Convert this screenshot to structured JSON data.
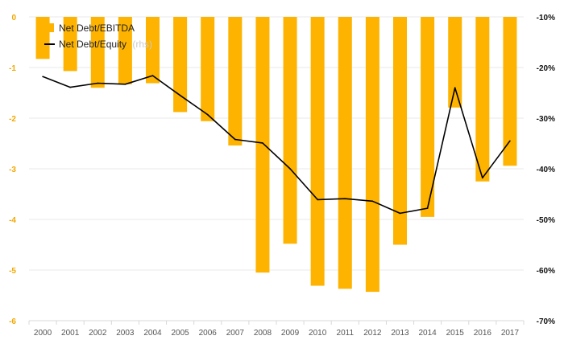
{
  "chart_data": {
    "type": "bar",
    "categories": [
      "2000",
      "2001",
      "2002",
      "2003",
      "2004",
      "2005",
      "2006",
      "2007",
      "2008",
      "2009",
      "2010",
      "2011",
      "2012",
      "2013",
      "2014",
      "2015",
      "2016",
      "2017"
    ],
    "series": [
      {
        "name": "Net Debt/EBITDA",
        "kind": "bar",
        "axis": "left",
        "color": "#fdb300",
        "values": [
          -0.83,
          -1.07,
          -1.4,
          -1.33,
          -1.31,
          -1.88,
          -2.06,
          -2.54,
          -5.05,
          -4.48,
          -5.31,
          -5.37,
          -5.43,
          -4.5,
          -3.95,
          -1.79,
          -3.25,
          -2.94
        ]
      },
      {
        "name": "Net Debt/Equity",
        "name_suffix": "(rhs)",
        "kind": "line",
        "axis": "right",
        "color": "#000000",
        "values": [
          -21.8,
          -23.9,
          -23.1,
          -23.3,
          -21.6,
          -25.5,
          -29.3,
          -34.2,
          -34.9,
          -40.0,
          -46.1,
          -45.9,
          -46.4,
          -48.8,
          -47.8,
          -24.0,
          -41.8,
          -34.5
        ]
      }
    ],
    "left_axis": {
      "ylim": [
        -6,
        0
      ],
      "ticks": [
        "0",
        "-1",
        "-2",
        "-3",
        "-4",
        "-5",
        "-6"
      ],
      "tick_values": [
        0,
        -1,
        -2,
        -3,
        -4,
        -5,
        -6
      ],
      "color": "#f0a800"
    },
    "right_axis": {
      "ylim": [
        -70,
        -10
      ],
      "ticks": [
        "-10%",
        "-20%",
        "-30%",
        "-40%",
        "-50%",
        "-60%",
        "-70%"
      ],
      "tick_values": [
        -10,
        -20,
        -30,
        -40,
        -50,
        -60,
        -70
      ]
    },
    "grid": true,
    "legend_position": "top-left"
  }
}
